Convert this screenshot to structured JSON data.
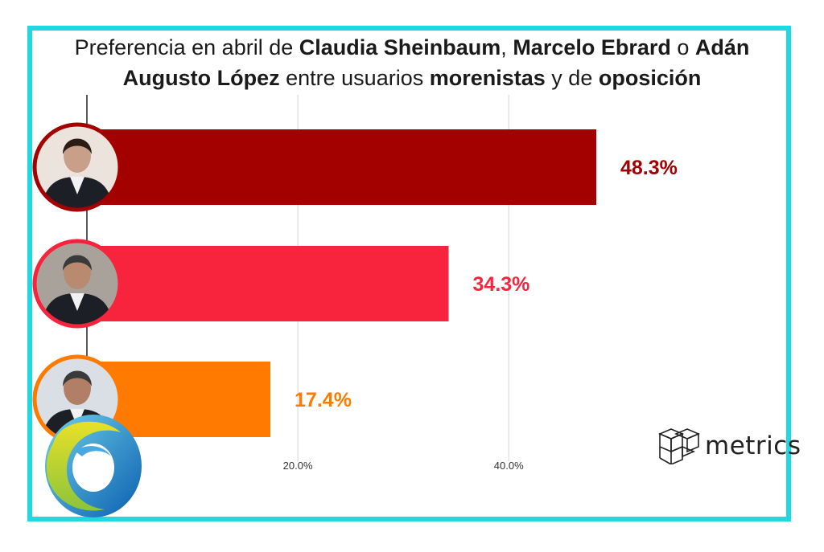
{
  "title": {
    "parts": [
      {
        "text": "Preferencia en abril de ",
        "bold": false
      },
      {
        "text": "Claudia Sheinbaum",
        "bold": true
      },
      {
        "text": ", ",
        "bold": false
      },
      {
        "text": "Marcelo Ebrard",
        "bold": true
      },
      {
        "text": " o ",
        "bold": false
      },
      {
        "text": "Adán",
        "bold": true
      },
      {
        "text": "\n",
        "bold": false
      },
      {
        "text": "Augusto López",
        "bold": true
      },
      {
        "text": " entre usuarios ",
        "bold": false
      },
      {
        "text": "morenistas",
        "bold": true
      },
      {
        "text": " y de ",
        "bold": false
      },
      {
        "text": "oposición",
        "bold": true
      }
    ]
  },
  "logo": {
    "text": "metrics",
    "icon": "cube-grid-icon"
  },
  "colors": {
    "frame": "#1fd8e0",
    "sheinbaum": "#a30000",
    "ebrard": "#f8233c",
    "lopez": "#ff7a00"
  },
  "chart_data": {
    "type": "bar",
    "orientation": "horizontal",
    "categories": [
      "Claudia Sheinbaum",
      "Marcelo Ebrard",
      "Adán Augusto López"
    ],
    "values": [
      48.3,
      34.3,
      17.4
    ],
    "data_labels": [
      "48.3%",
      "34.3%",
      "17.4%"
    ],
    "bar_colors": [
      "#a30000",
      "#f8233c",
      "#ff7a00"
    ],
    "xlim": [
      0,
      48.3
    ],
    "xticks": [
      20,
      40
    ],
    "xtick_labels": [
      "20.0%",
      "40.0%"
    ],
    "grid": true
  }
}
